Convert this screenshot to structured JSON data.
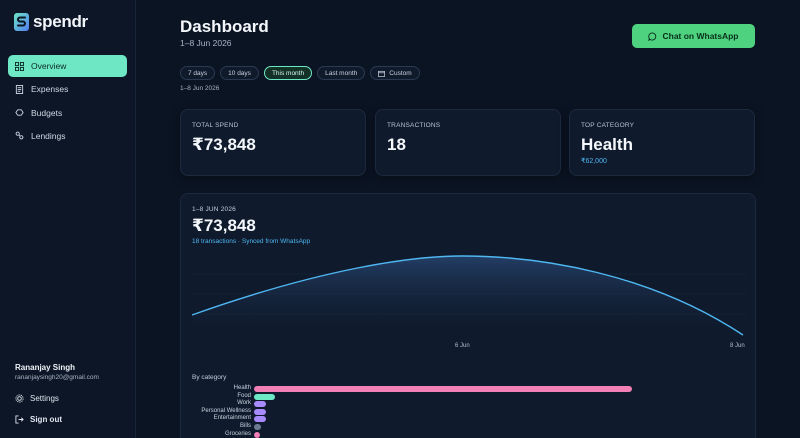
{
  "app": {
    "name": "spendr",
    "brand_color": "#6ee7c5"
  },
  "sidebar": {
    "items": [
      {
        "label": "Overview",
        "icon": "grid-icon",
        "active": true
      },
      {
        "label": "Expenses",
        "icon": "receipt-icon",
        "active": false
      },
      {
        "label": "Budgets",
        "icon": "piggy-icon",
        "active": false
      },
      {
        "label": "Lendings",
        "icon": "handshake-icon",
        "active": false
      }
    ],
    "user": {
      "name": "Rananjay Singh",
      "email": "rananjaysingh20@gmail.com"
    },
    "settings_label": "Settings",
    "signout_label": "Sign out"
  },
  "header": {
    "title": "Dashboard",
    "subtitle": "1–8 Jun 2026",
    "whatsapp_button": "Chat on WhatsApp",
    "whatsapp_color": "#4fd27f"
  },
  "filters": {
    "options": [
      "7 days",
      "10 days",
      "This month",
      "Last month",
      "Custom"
    ],
    "selected": "This month",
    "range_label": "1–8 Jun 2026"
  },
  "stats": {
    "total_spend": {
      "label": "TOTAL SPEND",
      "value": "₹73,848"
    },
    "transactions": {
      "label": "TRANSACTIONS",
      "value": "18"
    },
    "top_category": {
      "label": "TOP CATEGORY",
      "value": "Health",
      "amount": "₹62,000"
    }
  },
  "spend_chart": {
    "range": "1–8 JUN 2026",
    "total": "₹73,848",
    "subtitle": "18 transactions · Synced from WhatsApp",
    "x_ticks": [
      "6 Jun",
      "8 Jun"
    ],
    "line_color": "#4fb7f2"
  },
  "chart_data": {
    "type": "bar",
    "title": "By category",
    "categories": [
      "Health",
      "Food",
      "Work",
      "Personal Wellness",
      "Entertainment",
      "Bills",
      "Groceries"
    ],
    "values": [
      62000,
      3500,
      2000,
      2000,
      2000,
      1200,
      1000
    ],
    "colors": [
      "#f27fb5",
      "#6ee7c5",
      "#a78bfa",
      "#a78bfa",
      "#a78bfa",
      "#6b7a90",
      "#f27fb5"
    ]
  }
}
